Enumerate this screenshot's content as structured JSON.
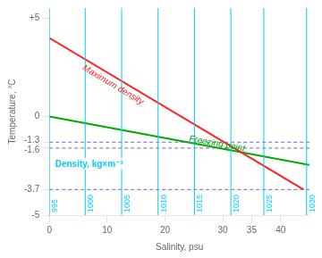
{
  "chart_data": {
    "type": "line",
    "xlabel": "Salinity, psu",
    "ylabel": "Temperature, °C",
    "xlim": [
      0,
      45
    ],
    "ylim": [
      -5,
      5.5
    ],
    "xticks": [
      0,
      10,
      20,
      30,
      35,
      40
    ],
    "yticks": [
      -5,
      -3.7,
      -1.6,
      -1.3,
      0,
      {
        "value": 5,
        "label": "+5"
      }
    ],
    "grid": false,
    "series": [
      {
        "color": "#ff2020",
        "x": [
          0,
          44
        ],
        "values": [
          3.98,
          -3.7
        ],
        "label": {
          "text": "Maximum density",
          "x": 11,
          "y": 1.6
        }
      },
      {
        "color": "#00aa00",
        "x": [
          0,
          45
        ],
        "values": [
          0.0,
          -2.45
        ],
        "label": {
          "text": "Freezing point",
          "x": 29,
          "y": -1.38
        }
      }
    ],
    "vlines": {
      "color": "#00ccff",
      "x": [
        0,
        6.2,
        12.5,
        18.8,
        25.1,
        31.4,
        37.1,
        44.5
      ],
      "labels": [
        "995",
        "1000",
        "1005",
        "1010",
        "1015",
        "1020",
        "1025",
        "1030"
      ]
    },
    "hlines": {
      "color": "#6666cc",
      "line_style": "dashed",
      "y": [
        -1.3,
        -1.6,
        -3.7
      ]
    },
    "annotations": [
      {
        "text": "Density, kg×m⁻³",
        "x": 1.0,
        "y": -2.55,
        "color": "#00ccff"
      }
    ]
  }
}
